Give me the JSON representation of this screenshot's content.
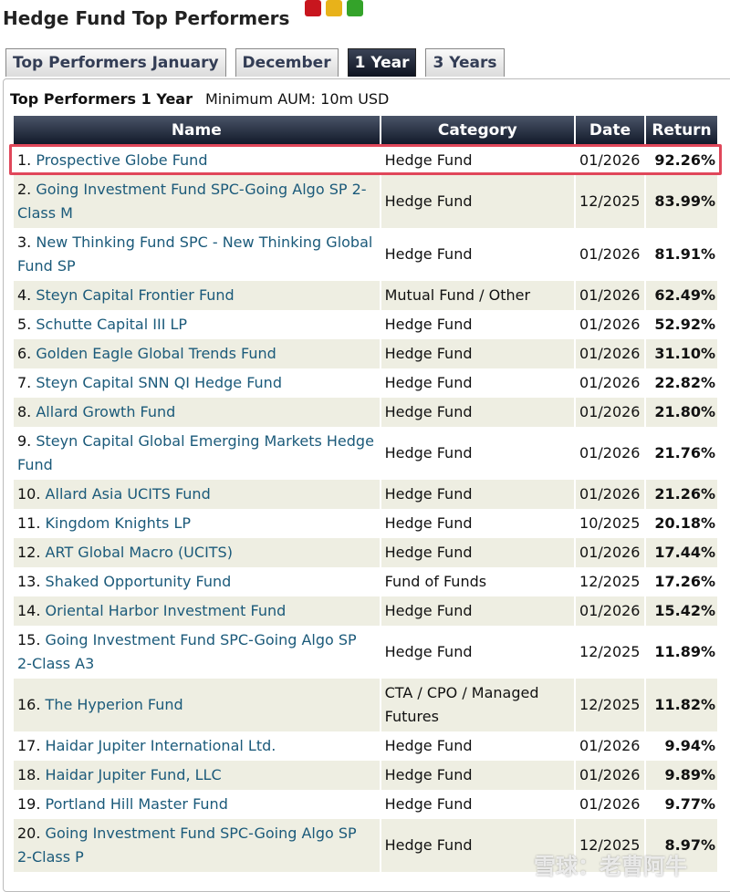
{
  "title": "Hedge Fund Top Performers",
  "tabs": [
    "Top Performers January",
    "December",
    "1 Year",
    "3 Years"
  ],
  "subtitle": "Top Performers 1 Year",
  "min_aum": "Minimum AUM: 10m USD",
  "columns": [
    "Name",
    "Category",
    "Date",
    "Return"
  ],
  "rows": [
    {
      "rank": "1.",
      "name": "Prospective Globe Fund",
      "category": "Hedge Fund",
      "date": "01/2026",
      "ret": "92.26%"
    },
    {
      "rank": "2.",
      "name": "Going Investment Fund SPC-Going Algo SP 2-Class M",
      "category": "Hedge Fund",
      "date": "12/2025",
      "ret": "83.99%"
    },
    {
      "rank": "3.",
      "name": "New Thinking Fund SPC - New Thinking Global Fund SP",
      "category": "Hedge Fund",
      "date": "01/2026",
      "ret": "81.91%"
    },
    {
      "rank": "4.",
      "name": "Steyn Capital Frontier Fund",
      "category": "Mutual Fund / Other",
      "date": "01/2026",
      "ret": "62.49%"
    },
    {
      "rank": "5.",
      "name": "Schutte Capital III LP",
      "category": "Hedge Fund",
      "date": "01/2026",
      "ret": "52.92%"
    },
    {
      "rank": "6.",
      "name": "Golden Eagle Global Trends Fund",
      "category": "Hedge Fund",
      "date": "01/2026",
      "ret": "31.10%"
    },
    {
      "rank": "7.",
      "name": "Steyn Capital SNN QI Hedge Fund",
      "category": "Hedge Fund",
      "date": "01/2026",
      "ret": "22.82%"
    },
    {
      "rank": "8.",
      "name": "Allard Growth Fund",
      "category": "Hedge Fund",
      "date": "01/2026",
      "ret": "21.80%"
    },
    {
      "rank": "9.",
      "name": "Steyn Capital Global Emerging Markets Hedge Fund",
      "category": "Hedge Fund",
      "date": "01/2026",
      "ret": "21.76%"
    },
    {
      "rank": "10.",
      "name": "Allard Asia UCITS Fund",
      "category": "Hedge Fund",
      "date": "01/2026",
      "ret": "21.26%"
    },
    {
      "rank": "11.",
      "name": "Kingdom Knights LP",
      "category": "Hedge Fund",
      "date": "10/2025",
      "ret": "20.18%"
    },
    {
      "rank": "12.",
      "name": "ART Global Macro (UCITS)",
      "category": "Hedge Fund",
      "date": "01/2026",
      "ret": "17.44%"
    },
    {
      "rank": "13.",
      "name": "Shaked Opportunity Fund",
      "category": "Fund of Funds",
      "date": "12/2025",
      "ret": "17.26%"
    },
    {
      "rank": "14.",
      "name": "Oriental Harbor Investment Fund",
      "category": "Hedge Fund",
      "date": "01/2026",
      "ret": "15.42%"
    },
    {
      "rank": "15.",
      "name": "Going Investment Fund SPC-Going Algo SP 2-Class A3",
      "category": "Hedge Fund",
      "date": "12/2025",
      "ret": "11.89%"
    },
    {
      "rank": "16.",
      "name": "The Hyperion Fund",
      "category": "CTA / CPO / Managed Futures",
      "date": "12/2025",
      "ret": "11.82%"
    },
    {
      "rank": "17.",
      "name": "Haidar Jupiter International Ltd.",
      "category": "Hedge Fund",
      "date": "01/2026",
      "ret": "9.94%"
    },
    {
      "rank": "18.",
      "name": "Haidar Jupiter Fund, LLC",
      "category": "Hedge Fund",
      "date": "01/2026",
      "ret": "9.89%"
    },
    {
      "rank": "19.",
      "name": "Portland Hill Master Fund",
      "category": "Hedge Fund",
      "date": "01/2026",
      "ret": "9.77%"
    },
    {
      "rank": "20.",
      "name": "Going Investment Fund SPC-Going Algo SP 2-Class P",
      "category": "Hedge Fund",
      "date": "12/2025",
      "ret": "8.97%"
    }
  ],
  "colors": {
    "red": "#c8161e",
    "yellow": "#e8b21a",
    "green": "#34a32a",
    "highlight": "#e0475a"
  },
  "watermark": "雪球：老曹阿牛"
}
